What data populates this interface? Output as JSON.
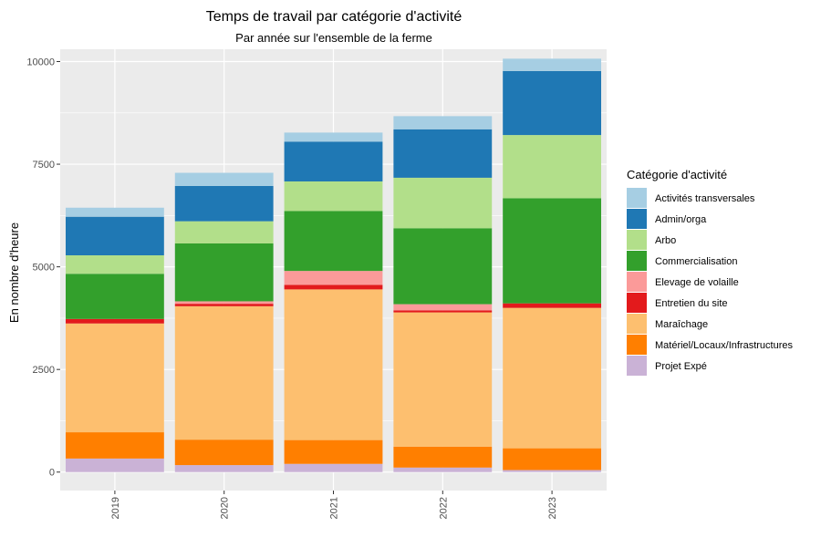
{
  "chart_data": {
    "type": "bar",
    "stacked": true,
    "title": "Temps de travail par catégorie d'activité",
    "subtitle": "Par année sur l'ensemble de la ferme",
    "xlabel": "",
    "ylabel": "En nombre d'heure",
    "ylim": [
      -450,
      10300
    ],
    "yticks": [
      0,
      2500,
      5000,
      7500,
      10000
    ],
    "ytick_labels": [
      "0",
      "2500",
      "5000",
      "7500",
      "10000"
    ],
    "categories": [
      "2019",
      "2020",
      "2021",
      "2022",
      "2023"
    ],
    "legend_title": "Catégorie d'activité",
    "legend_position": "right",
    "grid": true,
    "series": [
      {
        "name": "Projet Expé",
        "color": "#CAB2D6",
        "values": [
          330,
          170,
          200,
          110,
          50
        ]
      },
      {
        "name": "Matériel/Locaux/Infrastructures",
        "color": "#FF7F00",
        "values": [
          640,
          620,
          580,
          510,
          530
        ]
      },
      {
        "name": "Maraîchage",
        "color": "#FDBF6F",
        "values": [
          2650,
          3250,
          3670,
          3270,
          3420
        ]
      },
      {
        "name": "Entretien du site",
        "color": "#E31A1C",
        "values": [
          110,
          60,
          110,
          50,
          110
        ]
      },
      {
        "name": "Elevage de volaille",
        "color": "#FB9A99",
        "values": [
          0,
          60,
          340,
          150,
          0
        ]
      },
      {
        "name": "Commercialisation",
        "color": "#33A02C",
        "values": [
          1100,
          1410,
          1460,
          1850,
          2560
        ]
      },
      {
        "name": "Arbo",
        "color": "#B2DF8A",
        "values": [
          450,
          540,
          720,
          1230,
          1540
        ]
      },
      {
        "name": "Admin/orga",
        "color": "#1F78B4",
        "values": [
          940,
          860,
          970,
          1180,
          1560
        ]
      },
      {
        "name": "Activités transversales",
        "color": "#A6CEE3",
        "values": [
          220,
          320,
          220,
          320,
          300
        ]
      }
    ]
  }
}
